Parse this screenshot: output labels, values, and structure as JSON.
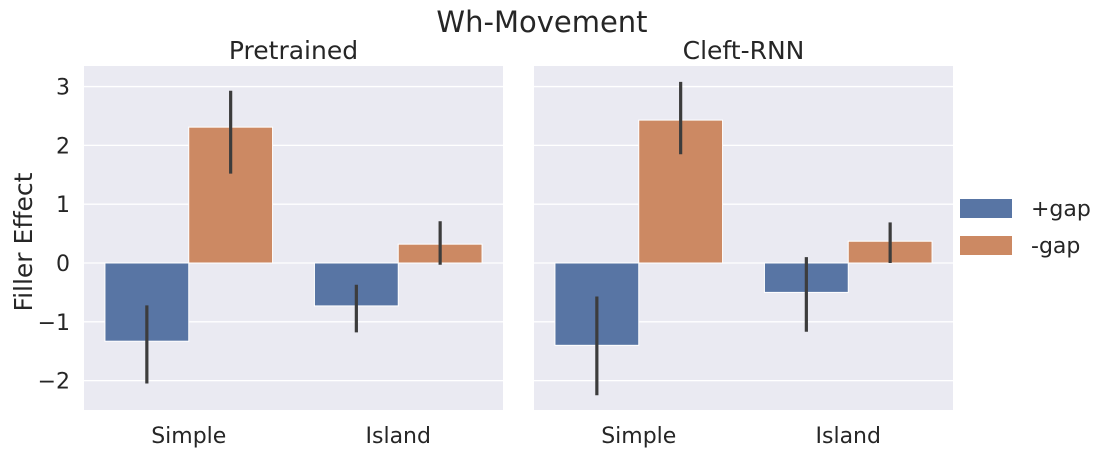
{
  "chart_data": {
    "type": "bar",
    "title": "Wh-Movement",
    "ylabel": "Filler Effect",
    "xlabel": "",
    "ylim": [
      -2.5,
      3.35
    ],
    "yticks": [
      -2,
      -1,
      0,
      1,
      2,
      3
    ],
    "ytick_labels": [
      "−2",
      "−1",
      "0",
      "1",
      "2",
      "3"
    ],
    "categories": [
      "Simple",
      "Island"
    ],
    "grid": true,
    "legend_position": "right",
    "colors": {
      "+gap": "#5875a4",
      "-gap": "#cc8963",
      "background": "#eaeaf2",
      "errorbar": "#3c3c3c"
    },
    "legend": [
      "+gap",
      "-gap"
    ],
    "panels": [
      {
        "title": "Pretrained",
        "series": [
          {
            "name": "+gap",
            "values": [
              -1.33,
              -0.73
            ],
            "ci_low": [
              -2.05,
              -1.18
            ],
            "ci_high": [
              -0.72,
              -0.37
            ]
          },
          {
            "name": "-gap",
            "values": [
              2.31,
              0.32
            ],
            "ci_low": [
              1.52,
              -0.03
            ],
            "ci_high": [
              2.93,
              0.71
            ]
          }
        ]
      },
      {
        "title": "Cleft-RNN",
        "series": [
          {
            "name": "+gap",
            "values": [
              -1.4,
              -0.5
            ],
            "ci_low": [
              -2.25,
              -1.17
            ],
            "ci_high": [
              -0.57,
              0.1
            ]
          },
          {
            "name": "-gap",
            "values": [
              2.43,
              0.37
            ],
            "ci_low": [
              1.85,
              0.0
            ],
            "ci_high": [
              3.08,
              0.69
            ]
          }
        ]
      }
    ]
  }
}
